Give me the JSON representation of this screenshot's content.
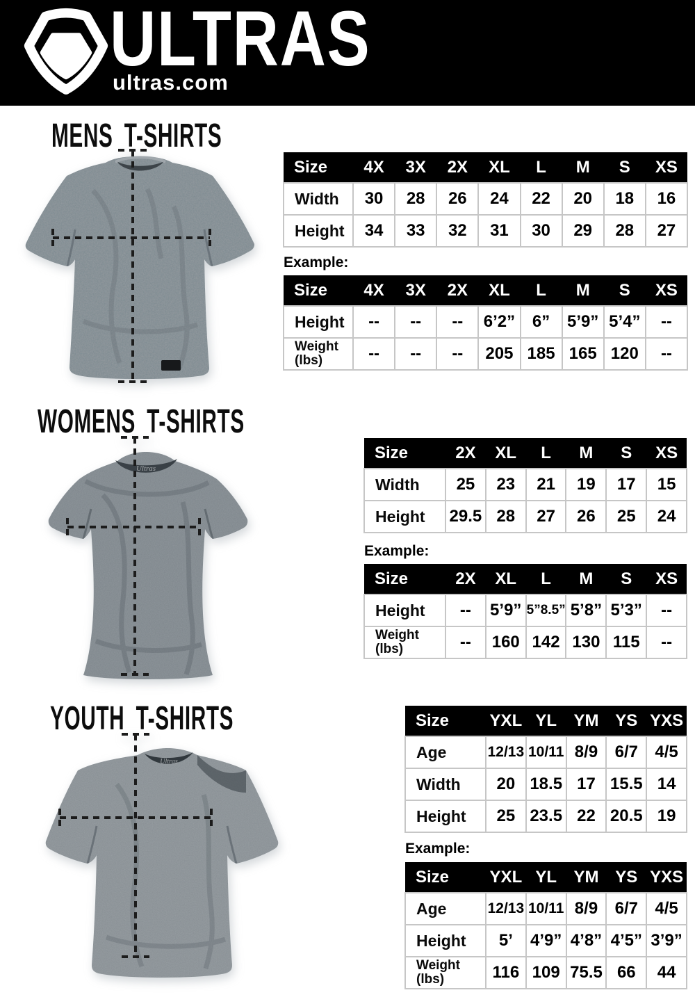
{
  "header": {
    "brand": "ULTRAS",
    "domain": "ultras.com",
    "logo_icon": "pentagon-shield-icon"
  },
  "colors": {
    "header_bg": "#000000",
    "header_text": "#ffffff",
    "table_header_bg": "#000000",
    "table_border": "#c6c6c6",
    "measure_line": "#1c1c1c",
    "shirt_mens": "#8a9196",
    "shirt_womens": "#7e868c",
    "shirt_youth": "#878e93"
  },
  "sections": [
    {
      "id": "mens",
      "title": "MENS T-SHIRTS",
      "example_label": "Example:",
      "size_table": {
        "columns": [
          "Size",
          "4X",
          "3X",
          "2X",
          "XL",
          "L",
          "M",
          "S",
          "XS"
        ],
        "rows": [
          {
            "label_lines": [
              "Width"
            ],
            "values": [
              "30",
              "28",
              "26",
              "24",
              "22",
              "20",
              "18",
              "16"
            ]
          },
          {
            "label_lines": [
              "Height"
            ],
            "values": [
              "34",
              "33",
              "32",
              "31",
              "30",
              "29",
              "28",
              "27"
            ]
          }
        ]
      },
      "example_table": {
        "columns": [
          "Size",
          "4X",
          "3X",
          "2X",
          "XL",
          "L",
          "M",
          "S",
          "XS"
        ],
        "rows": [
          {
            "label_lines": [
              "Height"
            ],
            "values": [
              "--",
              "--",
              "--",
              "6’2”",
              "6”",
              "5’9”",
              "5’4”",
              "--"
            ]
          },
          {
            "label_lines": [
              "Weight",
              "(lbs)"
            ],
            "values": [
              "--",
              "--",
              "--",
              "205",
              "185",
              "165",
              "120",
              "--"
            ]
          }
        ]
      }
    },
    {
      "id": "womens",
      "title": "WOMENS T-SHIRTS",
      "example_label": "Example:",
      "size_table": {
        "columns": [
          "Size",
          "2X",
          "XL",
          "L",
          "M",
          "S",
          "XS"
        ],
        "rows": [
          {
            "label_lines": [
              "Width"
            ],
            "values": [
              "25",
              "23",
              "21",
              "19",
              "17",
              "15"
            ]
          },
          {
            "label_lines": [
              "Height"
            ],
            "values": [
              "29.5",
              "28",
              "27",
              "26",
              "25",
              "24"
            ]
          }
        ]
      },
      "example_table": {
        "columns": [
          "Size",
          "2X",
          "XL",
          "L",
          "M",
          "S",
          "XS"
        ],
        "rows": [
          {
            "label_lines": [
              "Height"
            ],
            "values": [
              "--",
              "5’9”",
              "5”8.5”",
              "5’8”",
              "5’3”",
              "--"
            ]
          },
          {
            "label_lines": [
              "Weight",
              "(lbs)"
            ],
            "values": [
              "--",
              "160",
              "142",
              "130",
              "115",
              "--"
            ]
          }
        ]
      }
    },
    {
      "id": "youth",
      "title": "YOUTH T-SHIRTS",
      "example_label": "Example:",
      "size_table": {
        "columns": [
          "Size",
          "YXL",
          "YL",
          "YM",
          "YS",
          "YXS"
        ],
        "rows": [
          {
            "label_lines": [
              "Age"
            ],
            "values": [
              "12/13",
              "10/11",
              "8/9",
              "6/7",
              "4/5"
            ]
          },
          {
            "label_lines": [
              "Width"
            ],
            "values": [
              "20",
              "18.5",
              "17",
              "15.5",
              "14"
            ]
          },
          {
            "label_lines": [
              "Height"
            ],
            "values": [
              "25",
              "23.5",
              "22",
              "20.5",
              "19"
            ]
          }
        ]
      },
      "example_table": {
        "columns": [
          "Size",
          "YXL",
          "YL",
          "YM",
          "YS",
          "YXS"
        ],
        "rows": [
          {
            "label_lines": [
              "Age"
            ],
            "values": [
              "12/13",
              "10/11",
              "8/9",
              "6/7",
              "4/5"
            ]
          },
          {
            "label_lines": [
              "Height"
            ],
            "values": [
              "5’",
              "4’9”",
              "4’8”",
              "4’5”",
              "3’9”"
            ]
          },
          {
            "label_lines": [
              "Weight",
              "(lbs)"
            ],
            "values": [
              "116",
              "109",
              "75.5",
              "66",
              "44"
            ]
          }
        ]
      }
    }
  ]
}
